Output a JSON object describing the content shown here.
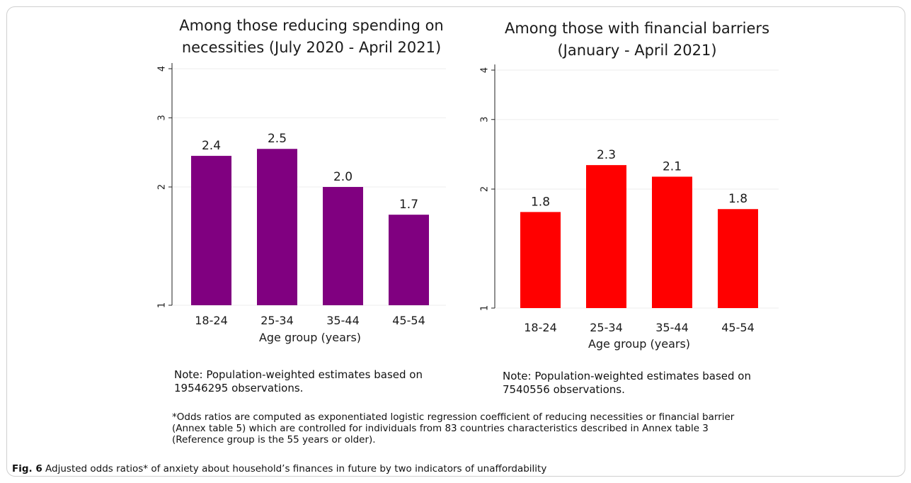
{
  "chart_data": [
    {
      "type": "bar",
      "title": "Among those reducing spending on necessities (July 2020 - April 2021)",
      "title_lines": [
        "Among those reducing spending on",
        "necessities (July 2020 - April 2021)"
      ],
      "xlabel": "Age group (years)",
      "ylabel": "",
      "categories": [
        "18-24",
        "25-34",
        "35-44",
        "45-54"
      ],
      "values": [
        2.4,
        2.5,
        2.0,
        1.7
      ],
      "value_labels": [
        "2.4",
        "2.5",
        "2.0",
        "1.7"
      ],
      "yscale": "log",
      "ylim": [
        1,
        4
      ],
      "yticks": [
        1,
        2,
        3,
        4
      ],
      "ytick_labels": [
        "1",
        "2",
        "3",
        "4"
      ],
      "color": "#800080",
      "grid": "horizontal",
      "note_lines": [
        "Note: Population-weighted estimates based on",
        "19546295 observations."
      ]
    },
    {
      "type": "bar",
      "title": "Among those with financial barriers (January - April 2021)",
      "title_lines": [
        "Among those with financial barriers",
        "(January - April 2021)"
      ],
      "xlabel": "Age group (years)",
      "ylabel": "",
      "categories": [
        "18-24",
        "25-34",
        "35-44",
        "45-54"
      ],
      "values": [
        1.75,
        2.3,
        2.15,
        1.78
      ],
      "value_labels": [
        "1.8",
        "2.3",
        "2.1",
        "1.8"
      ],
      "yscale": "log",
      "ylim": [
        1,
        4
      ],
      "yticks": [
        1,
        2,
        3,
        4
      ],
      "ytick_labels": [
        "1",
        "2",
        "3",
        "4"
      ],
      "color": "#ff0000",
      "grid": "horizontal",
      "note_lines": [
        "Note: Population-weighted estimates based on",
        "7540556 observations."
      ]
    }
  ],
  "footnote": {
    "line1": "*Odds ratios are computed as exponentiated logistic regression coefficient of reducing necessities or financial barrier",
    "line2": "(Annex table 5) which are controlled for individuals from 83 countries characteristics described in Annex table 3",
    "line3": "(Reference group is the 55 years or older)."
  },
  "caption": {
    "label": "Fig. 6",
    "text": "Adjusted odds ratios* of anxiety about household’s finances in future by two indicators of unaffordability"
  }
}
